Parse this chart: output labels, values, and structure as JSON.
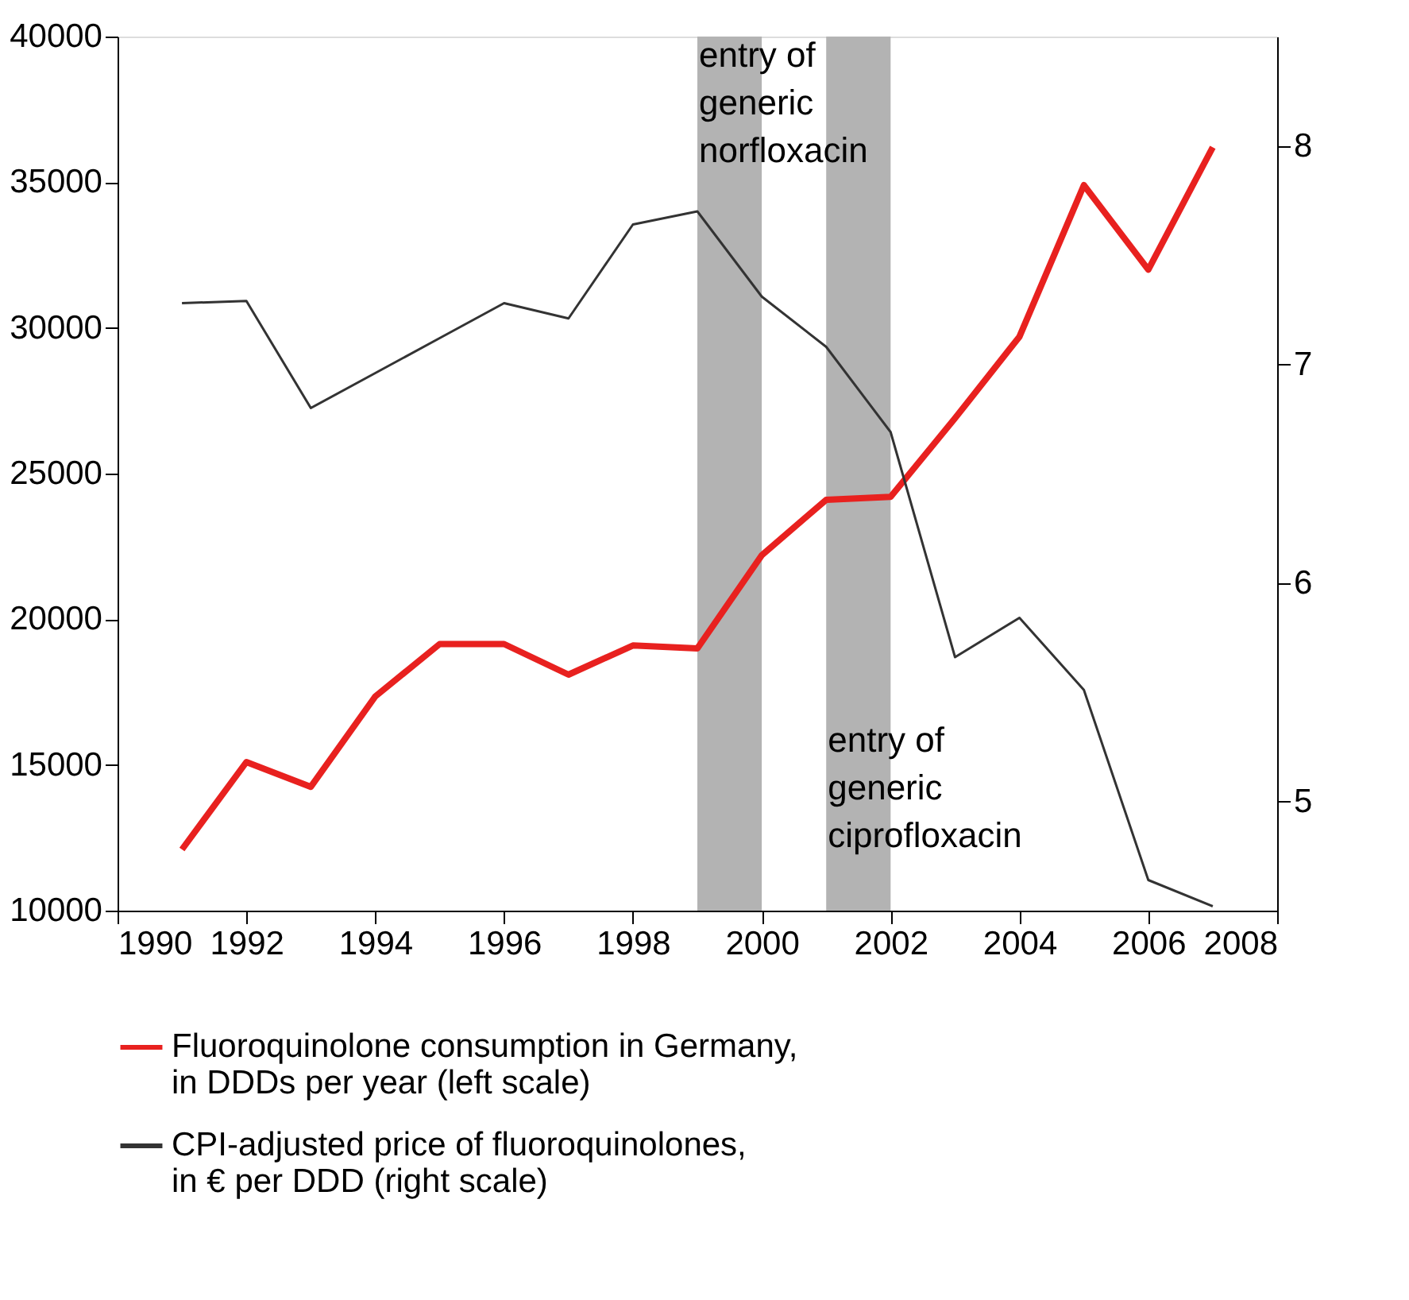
{
  "chart_data": {
    "type": "line",
    "x": [
      1991,
      1992,
      1993,
      1994,
      1995,
      1996,
      1997,
      1998,
      1999,
      2000,
      2001,
      2002,
      2003,
      2004,
      2005,
      2006,
      2007
    ],
    "series": [
      {
        "name": "Fluoroquinolone consumption in Germany,\nin DDDs per year (left scale)",
        "color": "#e8211f",
        "values": [
          12100,
          15100,
          14250,
          17350,
          19150,
          19150,
          18100,
          19100,
          19000,
          22200,
          24100,
          24200,
          26900,
          29700,
          34900,
          32000,
          36200
        ]
      },
      {
        "name": "CPI-adjusted price of fluoroquinolones,\nin € per DDD (right scale)",
        "color": "#333333",
        "axis": "y2",
        "values": [
          7.28,
          7.29,
          6.8,
          6.96,
          7.12,
          7.28,
          7.21,
          7.64,
          7.7,
          7.31,
          7.08,
          6.69,
          5.66,
          5.84,
          5.51,
          4.64,
          4.52
        ]
      }
    ],
    "xlim": [
      1990,
      2008
    ],
    "xticks": [
      1990,
      1992,
      1994,
      1996,
      1998,
      2000,
      2002,
      2004,
      2006,
      2008
    ],
    "ylim": [
      10000,
      40000
    ],
    "yticks": [
      10000,
      15000,
      20000,
      25000,
      30000,
      35000,
      40000
    ],
    "y2lim": [
      4.5,
      8.5
    ],
    "y2ticks": [
      5,
      6,
      7,
      8
    ],
    "bands": [
      {
        "axis": "x",
        "from": 1999,
        "to": 2000,
        "color": "#b3b3b3"
      },
      {
        "axis": "x",
        "from": 2001,
        "to": 2002,
        "color": "#b3b3b3"
      }
    ],
    "annotations": [
      {
        "text": "entry of\ngeneric\nnorfloxacin",
        "x": 1999,
        "y": 40000
      },
      {
        "text": "entry of\ngeneric\nciprofloxacin",
        "x": 2001,
        "y": 16500
      }
    ],
    "grid": false,
    "legend": "bottom",
    "marker": "none",
    "line_style": "solid"
  }
}
